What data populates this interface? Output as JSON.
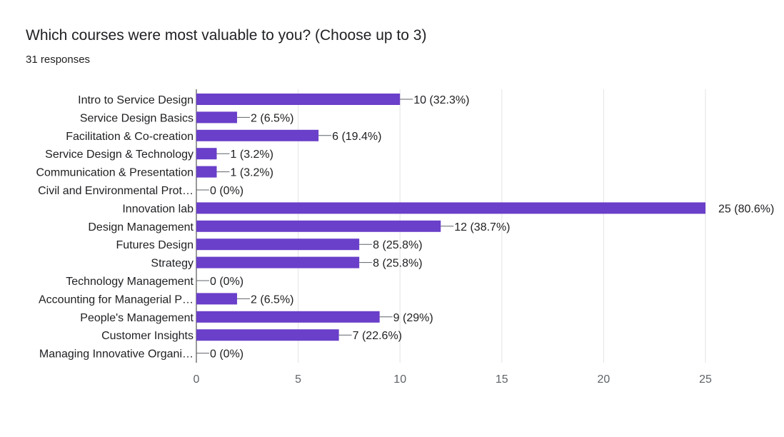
{
  "title": "Which courses were most valuable to you? (Choose up to 3)",
  "subtitle": "31 responses",
  "bar_color": "#6a3fc9",
  "chart_data": {
    "type": "bar",
    "orientation": "horizontal",
    "title": "Which courses were most valuable to you? (Choose up to 3)",
    "categories": [
      "Intro to Service Design",
      "Service Design Basics",
      "Facilitation & Co-creation",
      "Service Design & Technology",
      "Communication & Presentation",
      "Civil and Environmental Prot…",
      "Innovation lab",
      "Design Management",
      "Futures Design",
      "Strategy",
      "Technology Management",
      "Accounting for Managerial P…",
      "People's Management",
      "Customer Insights",
      "Managing Innovative Organi…"
    ],
    "values": [
      10,
      2,
      6,
      1,
      1,
      0,
      25,
      12,
      8,
      8,
      0,
      2,
      9,
      7,
      0
    ],
    "value_labels": [
      "10 (32.3%)",
      "2 (6.5%)",
      "6 (19.4%)",
      "1 (3.2%)",
      "1 (3.2%)",
      "0 (0%)",
      "25 (80.6%)",
      "12 (38.7%)",
      "8 (25.8%)",
      "8 (25.8%)",
      "0 (0%)",
      "2 (6.5%)",
      "9 (29%)",
      "7 (22.6%)",
      "0 (0%)"
    ],
    "xlim": [
      0,
      25
    ],
    "xticks": [
      0,
      5,
      10,
      15,
      20,
      25
    ],
    "xlabel": "",
    "ylabel": "",
    "grid": true
  }
}
